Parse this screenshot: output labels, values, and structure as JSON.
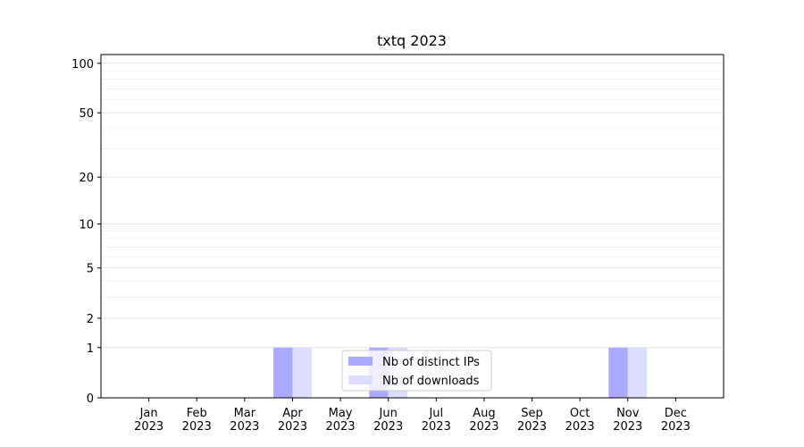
{
  "chart_data": {
    "type": "bar",
    "title": "txtq 2023",
    "categories": [
      "Jan\n2023",
      "Feb\n2023",
      "Mar\n2023",
      "Apr\n2023",
      "May\n2023",
      "Jun\n2023",
      "Jul\n2023",
      "Aug\n2023",
      "Sep\n2023",
      "Oct\n2023",
      "Nov\n2023",
      "Dec\n2023"
    ],
    "series": [
      {
        "name": "Nb of distinct IPs",
        "color": "#aaaaff",
        "values": [
          0,
          0,
          0,
          1,
          0,
          1,
          0,
          0,
          0,
          0,
          1,
          0
        ]
      },
      {
        "name": "Nb of downloads",
        "color": "#ddddff",
        "values": [
          0,
          0,
          0,
          1,
          0,
          1,
          0,
          0,
          0,
          0,
          1,
          0
        ]
      }
    ],
    "yscale": "log1p",
    "ylim": [
      0,
      113
    ],
    "yticks": [
      0,
      1,
      2,
      5,
      10,
      20,
      50,
      100
    ],
    "yminorticks": [
      3,
      4,
      6,
      7,
      8,
      9,
      30,
      40,
      60,
      70,
      80,
      90
    ],
    "grid": true,
    "legend": "lower center"
  }
}
